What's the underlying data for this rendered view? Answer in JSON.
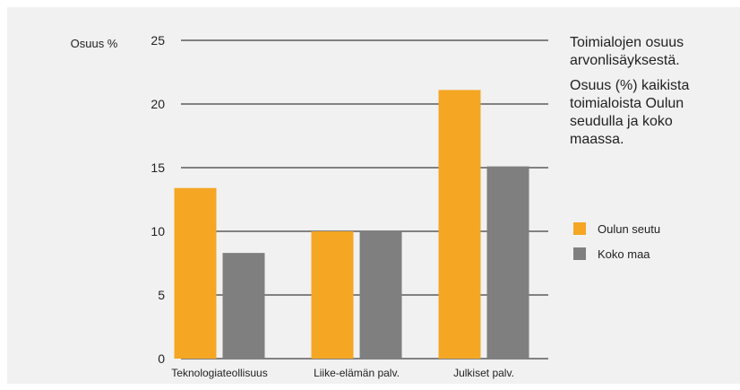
{
  "chart_data": {
    "type": "bar",
    "ylabel": "Osuus %",
    "categories": [
      "Teknologiateollisuus",
      "Liike-elämän palv.",
      "Julkiset palv."
    ],
    "series": [
      {
        "name": "Oulun seutu",
        "color": "#f5a623",
        "values": [
          13.4,
          10.0,
          21.1
        ]
      },
      {
        "name": "Koko maa",
        "color": "#7f7f7f",
        "values": [
          8.3,
          10.0,
          15.1
        ]
      }
    ],
    "ylim": [
      0,
      25
    ],
    "yticks": [
      0,
      5,
      10,
      15,
      20,
      25
    ],
    "grid": true,
    "legend": "right"
  },
  "side": {
    "title": "Toimialojen osuus arvonlisäyksestä.",
    "description": "Osuus (%) kaikista toimialoista Oulun seudulla ja koko maassa."
  },
  "colors": {
    "background": "#f1f1f1",
    "grid": "#111111"
  }
}
